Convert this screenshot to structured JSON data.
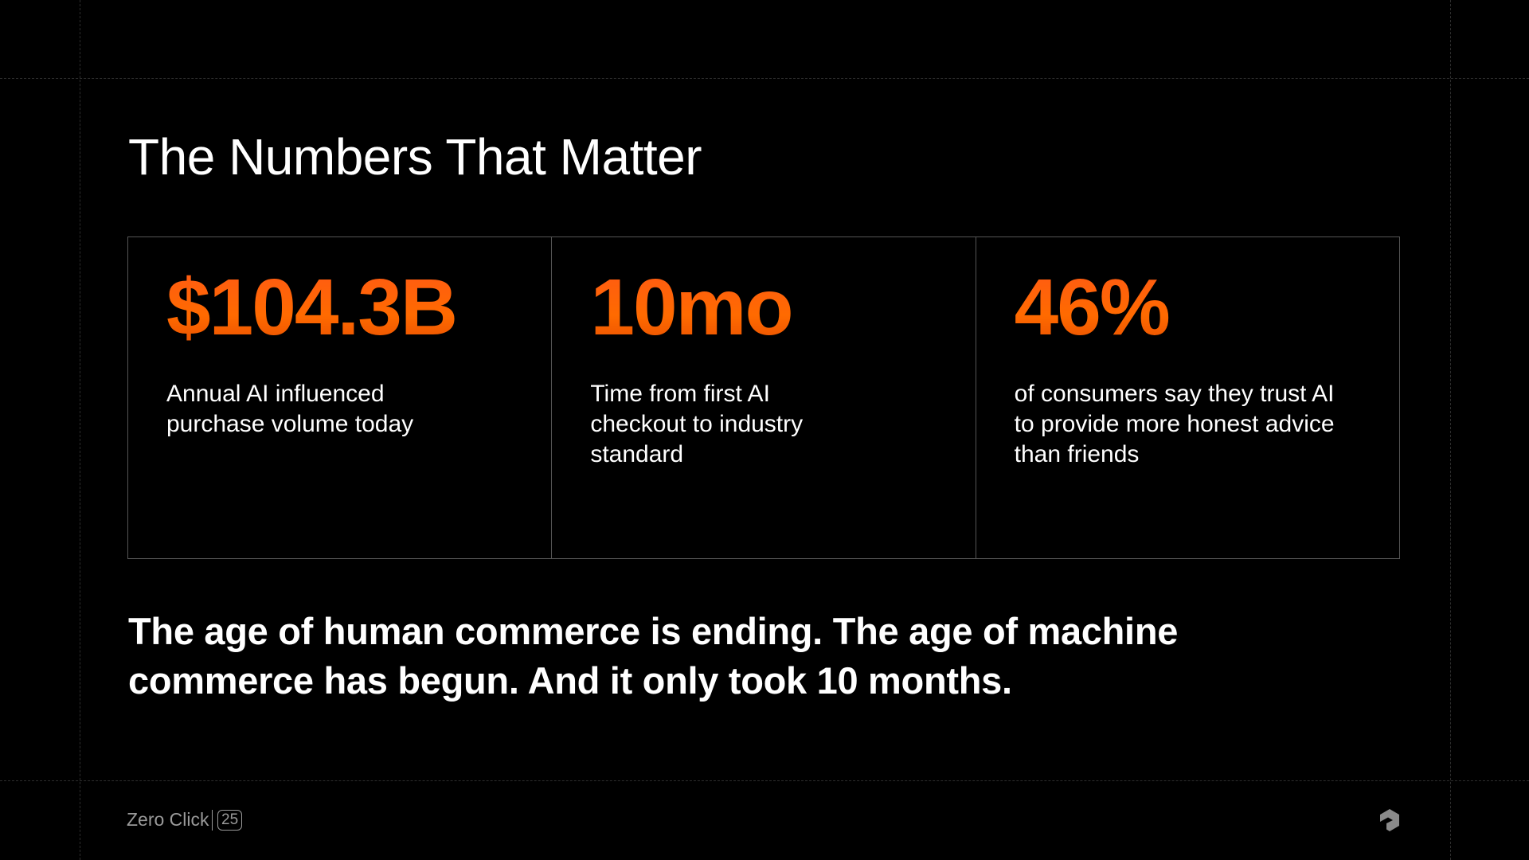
{
  "slide": {
    "title": "The Numbers That Matter",
    "stats": [
      {
        "value": "$104.3B",
        "description": "Annual AI influenced purchase volume today"
      },
      {
        "value": "10mo",
        "description": "Time from first AI checkout to industry standard"
      },
      {
        "value": "46%",
        "description": "of consumers say they trust AI to provide more honest advice than friends"
      }
    ],
    "statement": "The age of human commerce is ending. The age of machine commerce has begun. And it only took 10 months."
  },
  "footer": {
    "brand": "Zero Click",
    "badge": "25",
    "logo_icon": "hexagon-arrow-logo"
  },
  "colors": {
    "accent": "#ff6a00",
    "background": "#000000",
    "border": "#555555"
  }
}
